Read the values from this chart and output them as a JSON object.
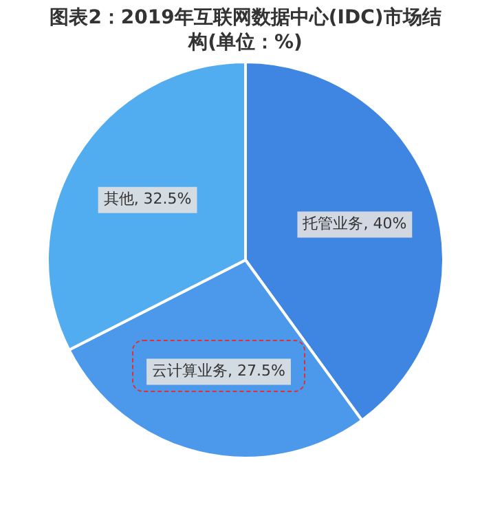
{
  "chart_data": {
    "type": "pie",
    "title": "图表2：2019年互联网数据中心(IDC)市场结构(单位：%)",
    "categories": [
      "托管业务",
      "云计算业务",
      "其他"
    ],
    "values": [
      40,
      27.5,
      32.5
    ],
    "colors": [
      "#3f86e3",
      "#4c98ea",
      "#52acf0"
    ],
    "value_labels": [
      ", 40%",
      ", 27.5%",
      ", 32.5%"
    ],
    "legend": false
  }
}
